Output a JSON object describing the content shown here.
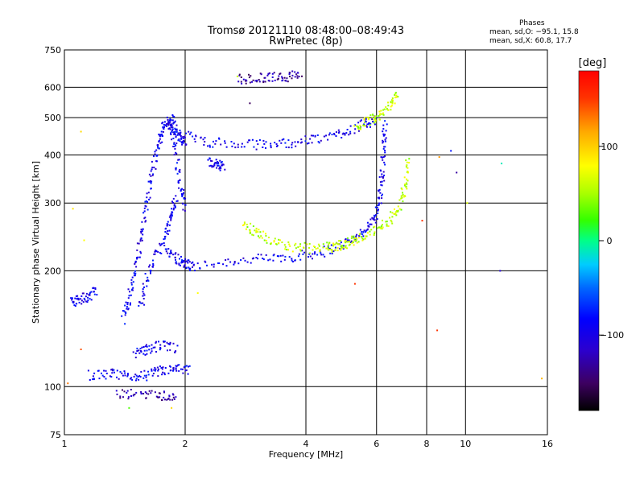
{
  "chart_data": {
    "type": "scatter",
    "title": "Tromsø 20121110 08:48:00–08:49:43",
    "subtitle": "RwPretec (8p)",
    "xlabel": "Frequency [MHz]",
    "ylabel": "Stationary phase Virtual Height [km]",
    "x_scale": "log",
    "y_scale": "log",
    "xlim": [
      1,
      16
    ],
    "ylim": [
      75,
      750
    ],
    "x_ticks": [
      1,
      2,
      4,
      6,
      8,
      10,
      16
    ],
    "y_ticks": [
      75,
      100,
      200,
      300,
      400,
      500,
      600,
      750
    ],
    "grid": true,
    "phase_stats": {
      "title": "Phases",
      "line_o": "mean, sd,O: −95.1, 15.8",
      "line_x": "mean, sd,X:  60.8, 17.7"
    },
    "colorbar": {
      "label": "[deg]",
      "ticks": [
        100,
        0,
        -100
      ],
      "range": [
        -180,
        180
      ]
    },
    "series": [
      {
        "phase": -95,
        "segments": [
          [
            [
              2.05,
              205
            ],
            [
              2.6,
              212
            ],
            [
              3.2,
              215
            ],
            [
              3.8,
              218
            ],
            [
              4.4,
              224
            ],
            [
              5.0,
              235
            ],
            [
              5.5,
              250
            ],
            [
              5.9,
              270
            ],
            [
              6.1,
              300
            ],
            [
              6.2,
              350
            ],
            [
              6.25,
              420
            ],
            [
              6.3,
              480
            ]
          ],
          [
            [
              1.4,
              150
            ],
            [
              1.45,
              170
            ],
            [
              1.5,
              200
            ],
            [
              1.55,
              240
            ],
            [
              1.6,
              290
            ],
            [
              1.65,
              350
            ],
            [
              1.7,
              410
            ],
            [
              1.75,
              460
            ],
            [
              1.8,
              490
            ],
            [
              1.85,
              470
            ],
            [
              1.9,
              400
            ],
            [
              1.95,
              330
            ],
            [
              2.0,
              290
            ]
          ],
          [
            [
              1.55,
              160
            ],
            [
              1.6,
              190
            ],
            [
              1.7,
              220
            ],
            [
              1.8,
              250
            ],
            [
              1.85,
              280
            ],
            [
              1.9,
              310
            ]
          ],
          [
            [
              1.8,
              230
            ],
            [
              1.9,
              215
            ],
            [
              2.0,
              208
            ],
            [
              2.1,
              206
            ]
          ],
          [
            [
              2.0,
              450
            ],
            [
              2.3,
              432
            ],
            [
              2.8,
              425
            ],
            [
              3.3,
              427
            ],
            [
              3.8,
              432
            ],
            [
              4.4,
              442
            ],
            [
              5.0,
              460
            ],
            [
              5.6,
              480
            ],
            [
              6.0,
              495
            ]
          ],
          [
            [
              1.85,
              500
            ],
            [
              1.9,
              460
            ],
            [
              1.95,
              440
            ],
            [
              2.0,
              435
            ]
          ],
          [
            [
              1.15,
              107
            ],
            [
              1.3,
              108
            ],
            [
              1.45,
              106
            ],
            [
              1.6,
              107
            ],
            [
              1.75,
              110
            ],
            [
              1.9,
              111
            ],
            [
              2.05,
              110
            ]
          ],
          [
            [
              1.5,
              122
            ],
            [
              1.6,
              125
            ],
            [
              1.75,
              128
            ],
            [
              1.9,
              125
            ]
          ],
          [
            [
              1.04,
              165
            ],
            [
              1.08,
              168
            ],
            [
              1.15,
              172
            ],
            [
              1.2,
              178
            ]
          ],
          [
            [
              2.3,
              385
            ],
            [
              2.4,
              378
            ],
            [
              2.5,
              372
            ]
          ]
        ]
      },
      {
        "phase": -130,
        "segments": [
          [
            [
              2.7,
              630
            ],
            [
              3.0,
              632
            ],
            [
              3.3,
              636
            ],
            [
              3.6,
              640
            ],
            [
              3.9,
              645
            ]
          ],
          [
            [
              1.35,
              95
            ],
            [
              1.55,
              96
            ],
            [
              1.75,
              95
            ],
            [
              1.9,
              94
            ]
          ]
        ]
      },
      {
        "phase": 60,
        "segments": [
          [
            [
              2.8,
              262
            ],
            [
              3.0,
              252
            ],
            [
              3.3,
              238
            ],
            [
              3.7,
              231
            ],
            [
              4.2,
              228
            ],
            [
              4.8,
              232
            ],
            [
              5.4,
              242
            ],
            [
              6.0,
              255
            ],
            [
              6.5,
              272
            ],
            [
              6.9,
              300
            ],
            [
              7.1,
              340
            ],
            [
              7.2,
              390
            ]
          ],
          [
            [
              5.3,
              470
            ],
            [
              5.7,
              492
            ],
            [
              6.1,
              510
            ],
            [
              6.5,
              540
            ],
            [
              6.8,
              570
            ]
          ],
          [
            [
              4.5,
              228
            ],
            [
              5.0,
              235
            ],
            [
              5.5,
              246
            ]
          ]
        ]
      }
    ],
    "stray_points": [
      {
        "x": 1.1,
        "y": 460,
        "phase": 95
      },
      {
        "x": 1.05,
        "y": 290,
        "phase": 90
      },
      {
        "x": 1.12,
        "y": 240,
        "phase": 80
      },
      {
        "x": 2.9,
        "y": 545,
        "phase": -150
      },
      {
        "x": 8.6,
        "y": 395,
        "phase": 120
      },
      {
        "x": 9.2,
        "y": 410,
        "phase": -80
      },
      {
        "x": 12.3,
        "y": 380,
        "phase": -10
      },
      {
        "x": 10.1,
        "y": 300,
        "phase": 70
      },
      {
        "x": 5.3,
        "y": 185,
        "phase": 150
      },
      {
        "x": 8.5,
        "y": 140,
        "phase": 150
      },
      {
        "x": 12.2,
        "y": 200,
        "phase": -110
      },
      {
        "x": 1.45,
        "y": 88,
        "phase": 30
      },
      {
        "x": 1.85,
        "y": 88,
        "phase": 95
      },
      {
        "x": 1.02,
        "y": 102,
        "phase": 130
      },
      {
        "x": 1.1,
        "y": 125,
        "phase": 140
      },
      {
        "x": 2.15,
        "y": 175,
        "phase": 80
      },
      {
        "x": 7.8,
        "y": 270,
        "phase": 150
      },
      {
        "x": 15.5,
        "y": 105,
        "phase": 110
      },
      {
        "x": 9.5,
        "y": 360,
        "phase": -130
      },
      {
        "x": 2.7,
        "y": 640,
        "phase": 60
      }
    ]
  }
}
